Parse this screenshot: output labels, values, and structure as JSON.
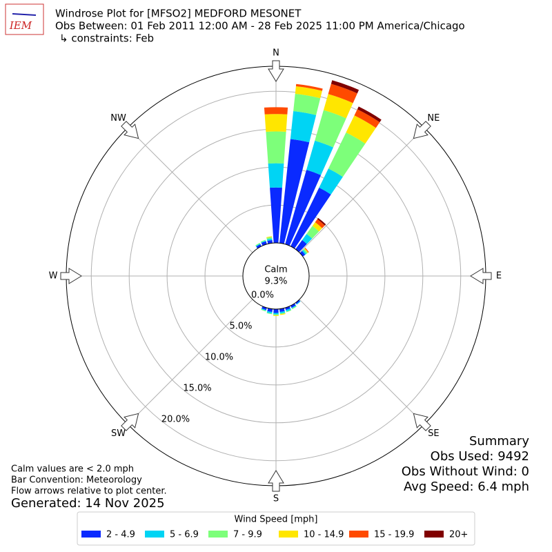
{
  "chart_data": {
    "type": "windrose",
    "logo_text": "IEM",
    "title": "Windrose Plot for [MFSO2] MEDFORD MESONET",
    "subtitle": "Obs Between: 01 Feb 2011 12:00 AM - 28 Feb 2025 11:00 PM America/Chicago",
    "constraints": "↳ constraints: Feb",
    "compass_labels": [
      "N",
      "NE",
      "E",
      "SE",
      "S",
      "SW",
      "W",
      "NW"
    ],
    "calm_label": "Calm",
    "calm_value": 9.3,
    "calm_value_label": "9.3%",
    "rlim": [
      0,
      23.3
    ],
    "rticks": [
      {
        "value": 0,
        "label": "0.0%"
      },
      {
        "value": 5,
        "label": "5.0%"
      },
      {
        "value": 10,
        "label": "10.0%"
      },
      {
        "value": 15,
        "label": "15.0%"
      },
      {
        "value": 20,
        "label": "20.0%"
      }
    ],
    "grid": true,
    "directions": [
      0,
      10,
      20,
      30,
      40,
      50,
      140,
      150,
      160,
      170,
      180,
      190,
      200,
      330,
      340,
      350
    ],
    "legend_title": "Wind Speed [mph]",
    "series": [
      {
        "name": "2 - 4.9",
        "color": "#0a2aff",
        "values": [
          7.3,
          13.8,
          10.2,
          8.6,
          1.5,
          0.4,
          0.2,
          0.3,
          0.3,
          0.4,
          0.5,
          0.4,
          0.3,
          0.3,
          0.4,
          0.4
        ]
      },
      {
        "name": "5 - 6.9",
        "color": "#00d4f4",
        "values": [
          3.2,
          3.7,
          4.0,
          2.8,
          1.0,
          0.2,
          0.1,
          0.1,
          0.2,
          0.2,
          0.2,
          0.2,
          0.1,
          0.1,
          0.1,
          0.2
        ]
      },
      {
        "name": "7 - 9.9",
        "color": "#7dff7a",
        "values": [
          4.2,
          2.3,
          4.2,
          5.3,
          1.3,
          0.2,
          0,
          0.1,
          0.1,
          0.1,
          0.1,
          0.1,
          0.1,
          0.1,
          0.1,
          0.2
        ]
      },
      {
        "name": "10 - 14.9",
        "color": "#ffe600",
        "values": [
          2.3,
          1.0,
          2.2,
          2.5,
          0.6,
          0.1,
          0,
          0,
          0,
          0.1,
          0.1,
          0,
          0,
          0,
          0,
          0.1
        ]
      },
      {
        "name": "15 - 19.9",
        "color": "#ff4a00",
        "values": [
          0.9,
          0.3,
          1.4,
          0.9,
          0.5,
          0.1,
          0,
          0,
          0,
          0,
          0,
          0,
          0,
          0,
          0,
          0
        ]
      },
      {
        "name": "20+",
        "color": "#800000",
        "values": [
          0,
          0,
          0.5,
          0.4,
          0.2,
          0,
          0,
          0,
          0,
          0,
          0,
          0,
          0,
          0,
          0,
          0
        ]
      }
    ],
    "notes": [
      "Calm values are < 2.0 mph",
      "Bar Convention: Meteorology",
      "Flow arrows relative to plot center."
    ],
    "generated": "Generated: 14 Nov 2025",
    "summary": [
      "Summary",
      "Obs Used: 9492",
      "Obs Without Wind: 0",
      "Avg Speed: 6.4 mph"
    ]
  }
}
